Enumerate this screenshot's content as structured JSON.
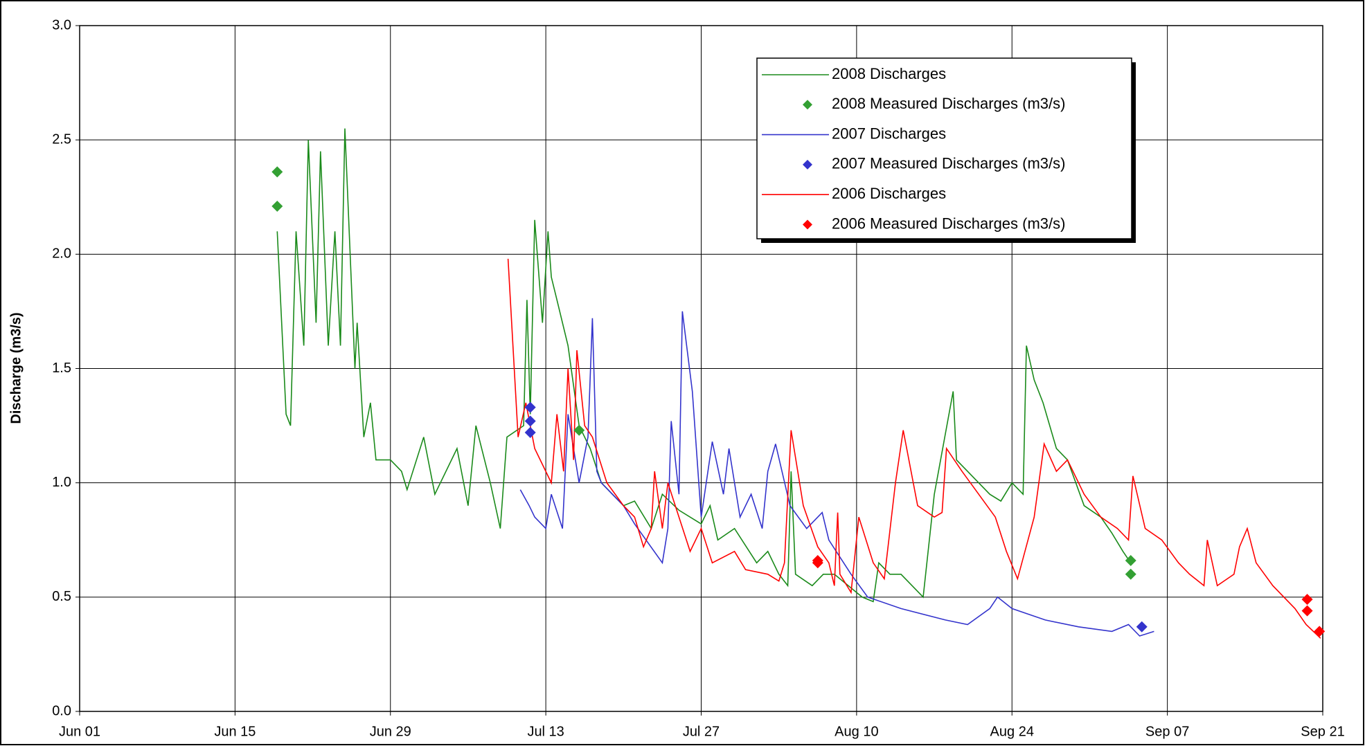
{
  "chart_data": {
    "type": "line",
    "y_label": "Discharge (m3/s)",
    "xlim": [
      0,
      112
    ],
    "xticks": [
      {
        "value": 0,
        "label": "Jun 01"
      },
      {
        "value": 14,
        "label": "Jun 15"
      },
      {
        "value": 28,
        "label": "Jun 29"
      },
      {
        "value": 42,
        "label": "Jul 13"
      },
      {
        "value": 56,
        "label": "Jul 27"
      },
      {
        "value": 70,
        "label": "Aug 10"
      },
      {
        "value": 84,
        "label": "Aug 24"
      },
      {
        "value": 98,
        "label": "Sep 07"
      },
      {
        "value": 112,
        "label": "Sep 21"
      }
    ],
    "ylim": [
      0,
      3
    ],
    "yticks": [
      {
        "value": 0,
        "label": "0.0"
      },
      0.5,
      {
        "value": 1,
        "label": "1.0"
      },
      1.5,
      {
        "value": 2,
        "label": "2.0"
      },
      2.5,
      {
        "value": 3,
        "label": "3.0"
      }
    ],
    "grid": true,
    "legend": "top-right",
    "series": [
      {
        "name": "2008 Discharges",
        "color": "#1a8a1a",
        "style": "line",
        "x": [
          17.8,
          18.0,
          18.6,
          19.0,
          19.5,
          20.2,
          20.6,
          21.3,
          21.7,
          22.4,
          23.0,
          23.5,
          23.9,
          24.8,
          25.0,
          25.6,
          26.2,
          26.7,
          28,
          29,
          29.5,
          31,
          32,
          34,
          35,
          35.7,
          37,
          37.9,
          38.5,
          40,
          40.3,
          40.6,
          41,
          41.7,
          42.2,
          42.5,
          43,
          44,
          45,
          46,
          47,
          49,
          50,
          51.5,
          52.5,
          54,
          56,
          56.8,
          57.5,
          59,
          61,
          62,
          63,
          63.8,
          64.1,
          64.5,
          66,
          67,
          68,
          70.5,
          71.5,
          72,
          73,
          74,
          76,
          77,
          78.7,
          79,
          80,
          82,
          83,
          84,
          85,
          85.3,
          86,
          86.8,
          88,
          89,
          90.5,
          92,
          93,
          94,
          94.7
        ],
        "values": [
          2.1,
          1.9,
          1.3,
          1.25,
          2.1,
          1.6,
          2.5,
          1.7,
          2.45,
          1.6,
          2.1,
          1.6,
          2.55,
          1.5,
          1.7,
          1.2,
          1.35,
          1.1,
          1.1,
          1.05,
          0.97,
          1.2,
          0.95,
          1.15,
          0.9,
          1.25,
          1.0,
          0.8,
          1.2,
          1.25,
          1.8,
          1.3,
          2.15,
          1.7,
          2.1,
          1.9,
          1.8,
          1.6,
          1.25,
          1.15,
          1.0,
          0.9,
          0.92,
          0.8,
          0.95,
          0.88,
          0.82,
          0.9,
          0.75,
          0.8,
          0.65,
          0.7,
          0.6,
          0.55,
          1.05,
          0.6,
          0.55,
          0.6,
          0.6,
          0.5,
          0.48,
          0.65,
          0.6,
          0.6,
          0.5,
          0.95,
          1.4,
          1.1,
          1.05,
          0.95,
          0.92,
          1.0,
          0.95,
          1.6,
          1.45,
          1.35,
          1.15,
          1.1,
          0.9,
          0.85,
          0.78,
          0.7,
          0.65
        ]
      },
      {
        "name": "2008 Measured Discharges (m3/s)",
        "color": "#33a033",
        "style": "diamond",
        "x": [
          17.8,
          17.8,
          45,
          94.7,
          94.7
        ],
        "values": [
          2.36,
          2.21,
          1.23,
          0.66,
          0.6
        ]
      },
      {
        "name": "2007 Discharges",
        "color": "#3333cc",
        "style": "line",
        "x": [
          39.7,
          40.5,
          41,
          42,
          42.5,
          43.5,
          44,
          45,
          45.8,
          46.2,
          46.6,
          47,
          49,
          50,
          52.5,
          53,
          53.3,
          54,
          54.3,
          55.2,
          56,
          57,
          58,
          58.5,
          59.5,
          60.5,
          61.5,
          62,
          62.7,
          64,
          65.5,
          66.9,
          67.5,
          69.5,
          71,
          74,
          78,
          80,
          82,
          82.7,
          84,
          87,
          90,
          93,
          94.5,
          95.5,
          96.8
        ],
        "values": [
          0.97,
          0.9,
          0.85,
          0.8,
          0.95,
          0.8,
          1.3,
          1.0,
          1.2,
          1.72,
          1.05,
          1.0,
          0.9,
          0.82,
          0.65,
          0.8,
          1.27,
          0.95,
          1.75,
          1.4,
          0.85,
          1.18,
          0.95,
          1.15,
          0.85,
          0.95,
          0.8,
          1.05,
          1.17,
          0.9,
          0.8,
          0.87,
          0.75,
          0.6,
          0.5,
          0.45,
          0.4,
          0.38,
          0.45,
          0.5,
          0.45,
          0.4,
          0.37,
          0.35,
          0.38,
          0.33,
          0.35
        ]
      },
      {
        "name": "2007 Measured Discharges (m3/s)",
        "color": "#3333cc",
        "style": "diamond",
        "x": [
          40.6,
          40.6,
          40.6,
          95.7
        ],
        "values": [
          1.33,
          1.27,
          1.22,
          0.37
        ]
      },
      {
        "name": "2006 Discharges",
        "color": "#ff0000",
        "style": "line",
        "x": [
          38.6,
          39.5,
          40.2,
          41,
          42.5,
          43,
          43.6,
          44,
          44.5,
          44.8,
          45.5,
          46.2,
          47.5,
          49,
          50,
          50.8,
          51.5,
          51.8,
          52.5,
          53,
          54,
          55,
          56,
          57,
          59,
          60,
          62,
          63,
          63.5,
          64.1,
          65.2,
          66.5,
          67.5,
          68,
          68.3,
          68.5,
          69.5,
          70.2,
          71.5,
          72.5,
          73.5,
          74.2,
          75.5,
          77,
          77.7,
          78.1,
          79.5,
          81,
          82.5,
          83.5,
          84.5,
          86,
          86.9,
          88,
          89,
          90.5,
          92,
          93.5,
          94.5,
          94.9,
          96,
          97.5,
          99,
          100,
          101.3,
          101.6,
          102.5,
          104,
          104.5,
          105.2,
          106,
          107.5,
          109.5,
          110.5,
          111.8
        ],
        "values": [
          1.98,
          1.2,
          1.35,
          1.15,
          1.0,
          1.3,
          1.05,
          1.5,
          1.1,
          1.58,
          1.25,
          1.2,
          1.0,
          0.9,
          0.85,
          0.72,
          0.8,
          1.05,
          0.8,
          1.0,
          0.85,
          0.7,
          0.8,
          0.65,
          0.7,
          0.62,
          0.6,
          0.57,
          0.65,
          1.23,
          0.9,
          0.72,
          0.65,
          0.55,
          0.87,
          0.6,
          0.52,
          0.85,
          0.65,
          0.58,
          1.0,
          1.23,
          0.9,
          0.85,
          0.87,
          1.15,
          1.05,
          0.95,
          0.85,
          0.7,
          0.58,
          0.85,
          1.17,
          1.05,
          1.1,
          0.95,
          0.85,
          0.8,
          0.75,
          1.03,
          0.8,
          0.75,
          0.65,
          0.6,
          0.55,
          0.75,
          0.55,
          0.6,
          0.72,
          0.8,
          0.65,
          0.55,
          0.45,
          0.38,
          0.32
        ]
      },
      {
        "name": "2006 Measured Discharges (m3/s)",
        "color": "#ff0000",
        "style": "diamond",
        "x": [
          66.5,
          66.5,
          110.6,
          110.6,
          111.7
        ],
        "values": [
          0.66,
          0.65,
          0.49,
          0.44,
          0.35
        ]
      }
    ]
  }
}
